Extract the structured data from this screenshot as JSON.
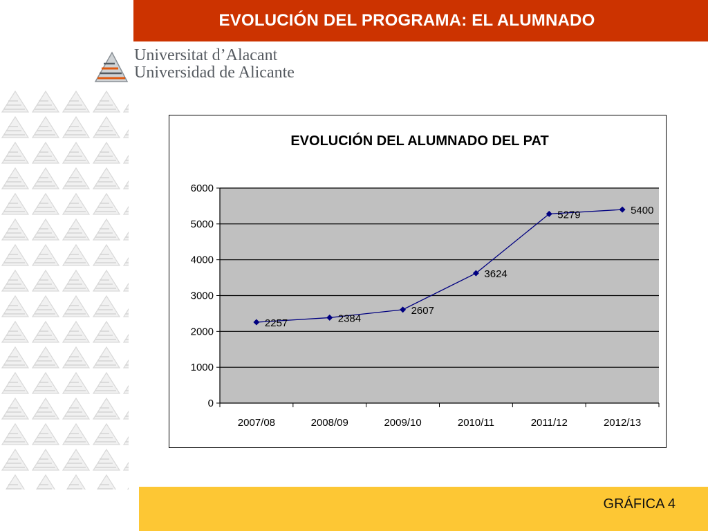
{
  "header": {
    "title": "EVOLUCIÓN DEL PROGRAMA: EL ALUMNADO"
  },
  "logo": {
    "line1": "Universitat d’Alacant",
    "line2": "Universidad de Alicante"
  },
  "footer": {
    "label": "GRÁFICA 4"
  },
  "colors": {
    "header_bg": "#cc3300",
    "footer_bg": "#fdc734",
    "plot_bg": "#c0c0c0",
    "series_line": "#000080"
  },
  "chart_data": {
    "type": "line",
    "title": "EVOLUCIÓN DEL ALUMNADO DEL PAT",
    "categories": [
      "2007/08",
      "2008/09",
      "2009/10",
      "2010/11",
      "2011/12",
      "2012/13"
    ],
    "series": [
      {
        "values": [
          2257,
          2384,
          2607,
          3624,
          5279,
          5400
        ]
      }
    ],
    "data_labels": [
      "2257",
      "2384",
      "2607",
      "3624",
      "5279",
      "5400"
    ],
    "ylim": [
      0,
      6000
    ],
    "yticks": [
      "0",
      "1000",
      "2000",
      "3000",
      "4000",
      "5000",
      "6000"
    ],
    "grid": "horizontal",
    "legend": "none",
    "marker": "diamond"
  }
}
